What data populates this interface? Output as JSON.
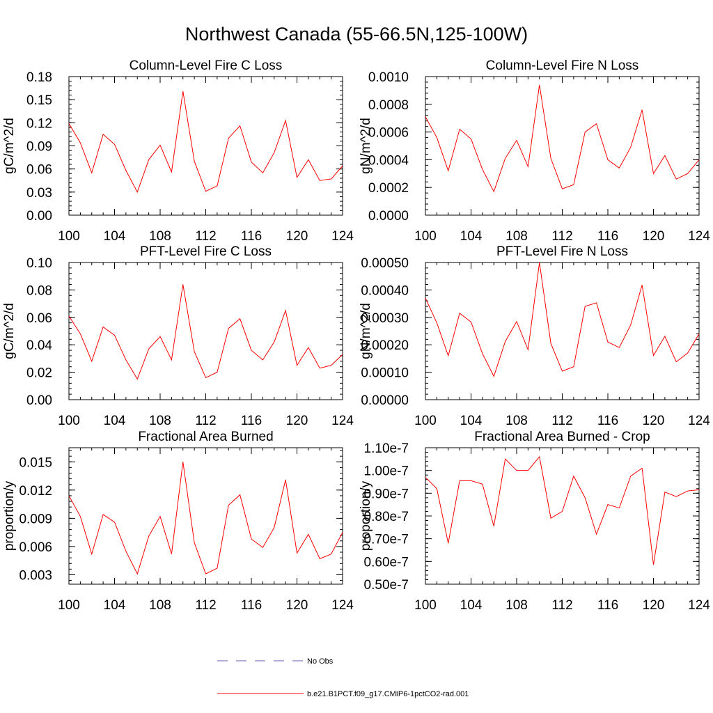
{
  "figure": {
    "title": "Northwest Canada (55-66.5N,125-100W)"
  },
  "chart_data": [
    {
      "type": "line",
      "title": "Column-Level Fire C Loss",
      "ylabel": "gC/m^2/d",
      "xlabel": "",
      "xlim": [
        100,
        124
      ],
      "ylim": [
        0,
        0.18
      ],
      "xticks": [
        "100",
        "104",
        "108",
        "112",
        "116",
        "120",
        "124"
      ],
      "yticks": [
        "0.00",
        "0.03",
        "0.06",
        "0.09",
        "0.12",
        "0.15",
        "0.18"
      ],
      "x": [
        100,
        101,
        102,
        103,
        104,
        105,
        106,
        107,
        108,
        109,
        110,
        111,
        112,
        113,
        114,
        115,
        116,
        117,
        118,
        119,
        120,
        121,
        122,
        123,
        124
      ],
      "series": [
        {
          "values": [
            0.119,
            0.094,
            0.055,
            0.105,
            0.092,
            0.058,
            0.03,
            0.072,
            0.091,
            0.056,
            0.161,
            0.07,
            0.031,
            0.038,
            0.1,
            0.116,
            0.069,
            0.055,
            0.081,
            0.123,
            0.049,
            0.072,
            0.045,
            0.047,
            0.064
          ]
        }
      ]
    },
    {
      "type": "line",
      "title": "Column-Level Fire N Loss",
      "ylabel": "gN/m^2/d",
      "xlabel": "",
      "xlim": [
        100,
        124
      ],
      "ylim": [
        0,
        0.001
      ],
      "xticks": [
        "100",
        "104",
        "108",
        "112",
        "116",
        "120",
        "124"
      ],
      "yticks": [
        "0.0000",
        "0.0002",
        "0.0004",
        "0.0006",
        "0.0008",
        "0.0010"
      ],
      "x": [
        100,
        101,
        102,
        103,
        104,
        105,
        106,
        107,
        108,
        109,
        110,
        111,
        112,
        113,
        114,
        115,
        116,
        117,
        118,
        119,
        120,
        121,
        122,
        123,
        124
      ],
      "series": [
        {
          "values": [
            0.00071,
            0.00056,
            0.00032,
            0.00062,
            0.00055,
            0.00033,
            0.00017,
            0.00041,
            0.00054,
            0.00035,
            0.00094,
            0.00041,
            0.00019,
            0.00022,
            0.0006,
            0.00066,
            0.0004,
            0.00034,
            0.00049,
            0.00076,
            0.0003,
            0.00043,
            0.00026,
            0.0003,
            0.0004
          ]
        }
      ]
    },
    {
      "type": "line",
      "title": "PFT-Level Fire C Loss",
      "ylabel": "gC/m^2/d",
      "xlabel": "",
      "xlim": [
        100,
        124
      ],
      "ylim": [
        0,
        0.1
      ],
      "xticks": [
        "100",
        "104",
        "108",
        "112",
        "116",
        "120",
        "124"
      ],
      "yticks": [
        "0.00",
        "0.02",
        "0.04",
        "0.06",
        "0.08",
        "0.10"
      ],
      "x": [
        100,
        101,
        102,
        103,
        104,
        105,
        106,
        107,
        108,
        109,
        110,
        111,
        112,
        113,
        114,
        115,
        116,
        117,
        118,
        119,
        120,
        121,
        122,
        123,
        124
      ],
      "series": [
        {
          "values": [
            0.061,
            0.048,
            0.028,
            0.053,
            0.047,
            0.029,
            0.015,
            0.037,
            0.046,
            0.029,
            0.084,
            0.035,
            0.016,
            0.02,
            0.052,
            0.059,
            0.036,
            0.029,
            0.042,
            0.065,
            0.025,
            0.038,
            0.023,
            0.025,
            0.033
          ]
        }
      ]
    },
    {
      "type": "line",
      "title": "PFT-Level Fire N Loss",
      "ylabel": "gN/m^2/d",
      "xlabel": "",
      "xlim": [
        100,
        124
      ],
      "ylim": [
        0,
        0.0005
      ],
      "xticks": [
        "100",
        "104",
        "108",
        "112",
        "116",
        "120",
        "124"
      ],
      "yticks": [
        "0.00000",
        "0.00010",
        "0.00020",
        "0.00030",
        "0.00040",
        "0.00050"
      ],
      "x": [
        100,
        101,
        102,
        103,
        104,
        105,
        106,
        107,
        108,
        109,
        110,
        111,
        112,
        113,
        114,
        115,
        116,
        117,
        118,
        119,
        120,
        121,
        122,
        123,
        124
      ],
      "series": [
        {
          "values": [
            0.00037,
            0.00028,
            0.00016,
            0.000315,
            0.000283,
            0.000168,
            8.5e-05,
            0.000212,
            0.000285,
            0.000182,
            0.0005,
            0.000205,
            0.000104,
            0.00012,
            0.00034,
            0.000353,
            0.00021,
            0.00019,
            0.000272,
            0.000418,
            0.000161,
            0.000231,
            0.000138,
            0.00017,
            0.00024
          ]
        }
      ]
    },
    {
      "type": "line",
      "title": "Fractional Area Burned",
      "ylabel": "proportion/y",
      "xlabel": "",
      "xlim": [
        100,
        124
      ],
      "ylim": [
        0.002,
        0.0165
      ],
      "xticks": [
        "100",
        "104",
        "108",
        "112",
        "116",
        "120",
        "124"
      ],
      "yticks": [
        "0.003",
        "0.006",
        "0.009",
        "0.012",
        "0.015"
      ],
      "x": [
        100,
        101,
        102,
        103,
        104,
        105,
        106,
        107,
        108,
        109,
        110,
        111,
        112,
        113,
        114,
        115,
        116,
        117,
        118,
        119,
        120,
        121,
        122,
        123,
        124
      ],
      "series": [
        {
          "values": [
            0.0114,
            0.0092,
            0.0052,
            0.0094,
            0.0086,
            0.0055,
            0.0031,
            0.0071,
            0.0092,
            0.0052,
            0.015,
            0.0064,
            0.0031,
            0.0037,
            0.0104,
            0.0115,
            0.0068,
            0.0059,
            0.008,
            0.0131,
            0.0053,
            0.0073,
            0.0047,
            0.0052,
            0.0075
          ]
        }
      ]
    },
    {
      "type": "line",
      "title": "Fractional Area Burned - Crop",
      "ylabel": "proportion/y",
      "xlabel": "",
      "xlim": [
        100,
        124
      ],
      "ylim": [
        5e-08,
        1.1e-07
      ],
      "xticks": [
        "100",
        "104",
        "108",
        "112",
        "116",
        "120",
        "124"
      ],
      "yticks": [
        "0.50e-7",
        "0.60e-7",
        "0.70e-7",
        "0.80e-7",
        "0.90e-7",
        "1.00e-7",
        "1.10e-7"
      ],
      "x": [
        100,
        101,
        102,
        103,
        104,
        105,
        106,
        107,
        108,
        109,
        110,
        111,
        112,
        113,
        114,
        115,
        116,
        117,
        118,
        119,
        120,
        121,
        122,
        123,
        124
      ],
      "series": [
        {
          "values": [
            9.7e-08,
            9.2e-08,
            6.8e-08,
            9.55e-08,
            9.55e-08,
            9.4e-08,
            7.55e-08,
            1.05e-07,
            1e-07,
            1e-07,
            1.06e-07,
            7.9e-08,
            8.2e-08,
            9.75e-08,
            8.8e-08,
            7.2e-08,
            8.5e-08,
            8.35e-08,
            9.75e-08,
            1.01e-07,
            5.85e-08,
            9.05e-08,
            8.85e-08,
            9.1e-08,
            9.15e-08
          ]
        }
      ]
    }
  ],
  "legend": {
    "items": [
      {
        "label": "No Obs",
        "color": "#5a5aa8",
        "dash": true
      },
      {
        "label": "b.e21.B1PCT.f09_g17.CMIP6-1pctCO2-rad.001",
        "color": "#ff0000",
        "dash": false
      }
    ]
  }
}
